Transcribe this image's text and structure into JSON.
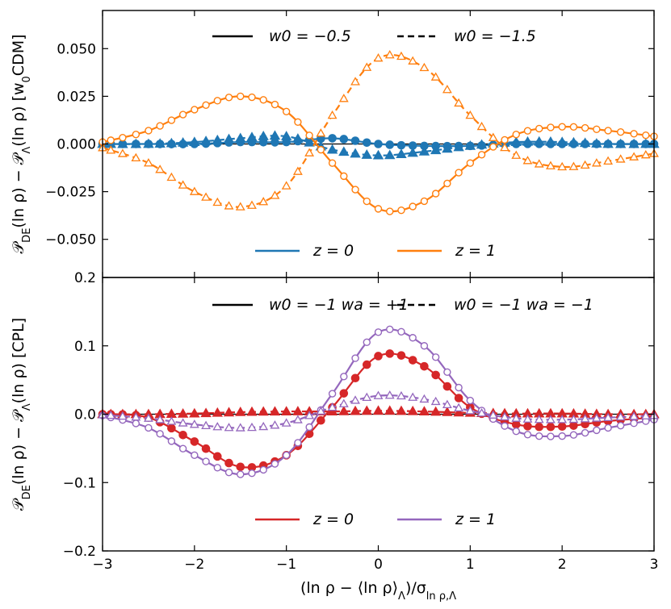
{
  "chart_data": [
    {
      "type": "line",
      "panel": "top",
      "ylabel": "P_DE(ln ρ) − P_Λ(ln ρ) [w0CDM]",
      "ylabel_parts": {
        "main": "𝒫",
        "sub1": "DE",
        "mid": "(ln ρ) − 𝒫",
        "sub2": "Λ",
        "tail": "(ln ρ) [w",
        "sub3": "0",
        "end": "CDM]"
      },
      "xlim": [
        -3,
        3
      ],
      "ylim": [
        -0.07,
        0.07
      ],
      "xticks": [
        -3,
        -2,
        -1,
        0,
        1,
        2,
        3
      ],
      "yticks": [
        -0.05,
        -0.025,
        0.0,
        0.025,
        0.05
      ],
      "ytick_labels": [
        "−0.050",
        "−0.025",
        "0.000",
        "0.025",
        "0.050"
      ],
      "show_xtick_labels": false,
      "zero_line": true,
      "series": [
        {
          "name": "w0 = -0.5, z = 0",
          "color": "#1f77b4",
          "linestyle": "solid",
          "marker": "filled-circle",
          "x": [
            -3.0,
            -2.5,
            -2.0,
            -1.5,
            -1.0,
            -0.5,
            0.0,
            0.5,
            1.0,
            1.5,
            2.0,
            2.5,
            3.0
          ],
          "y": [
            0.0,
            0.0,
            0.0,
            0.001,
            0.001,
            0.003,
            0.0,
            -0.001,
            -0.001,
            0.0,
            0.0,
            0.0,
            0.0
          ]
        },
        {
          "name": "w0 = -1.5, z = 0",
          "color": "#1f77b4",
          "linestyle": "dashed",
          "marker": "filled-triangle",
          "x": [
            -3.0,
            -2.5,
            -2.0,
            -1.5,
            -1.0,
            -0.5,
            0.0,
            0.5,
            1.0,
            1.5,
            2.0,
            2.5,
            3.0
          ],
          "y": [
            0.0,
            0.0,
            0.001,
            0.003,
            0.004,
            -0.003,
            -0.006,
            -0.004,
            -0.001,
            0.001,
            0.001,
            0.0,
            0.0
          ]
        },
        {
          "name": "w0 = -0.5, z = 1",
          "color": "#ff7f0e",
          "linestyle": "solid",
          "marker": "open-circle",
          "x": [
            -3.0,
            -2.5,
            -2.0,
            -1.5,
            -1.0,
            -0.5,
            0.0,
            0.5,
            1.0,
            1.5,
            2.0,
            2.5,
            3.0
          ],
          "y": [
            0.001,
            0.007,
            0.018,
            0.025,
            0.017,
            -0.01,
            -0.034,
            -0.03,
            -0.01,
            0.005,
            0.009,
            0.007,
            0.004
          ]
        },
        {
          "name": "w0 = -1.5, z = 1",
          "color": "#ff7f0e",
          "linestyle": "dashed",
          "marker": "open-triangle",
          "x": [
            -3.0,
            -2.5,
            -2.0,
            -1.5,
            -1.0,
            -0.5,
            0.0,
            0.5,
            1.0,
            1.5,
            2.0,
            2.5,
            3.0
          ],
          "y": [
            -0.002,
            -0.01,
            -0.025,
            -0.033,
            -0.022,
            0.015,
            0.045,
            0.04,
            0.015,
            -0.006,
            -0.012,
            -0.009,
            -0.005
          ]
        }
      ],
      "legend_linestyle": [
        {
          "label": "w0 = −0.5",
          "linestyle": "solid"
        },
        {
          "label": "w0 = −1.5",
          "linestyle": "dashed"
        }
      ],
      "legend_color": [
        {
          "label": "z = 0",
          "color": "#1f77b4"
        },
        {
          "label": "z = 1",
          "color": "#ff7f0e"
        }
      ]
    },
    {
      "type": "line",
      "panel": "bottom",
      "ylabel": "P_DE(ln ρ) − P_Λ(ln ρ) [CPL]",
      "ylabel_parts": {
        "main": "𝒫",
        "sub1": "DE",
        "mid": "(ln ρ) − 𝒫",
        "sub2": "Λ",
        "tail": "(ln ρ) [CPL]"
      },
      "xlabel": "(ln ρ − ⟨ln ρ⟩_Λ)/σ_lnρ,Λ",
      "xlabel_parts": {
        "main": "(ln ρ − ⟨ln ρ⟩",
        "sub1": "Λ",
        "mid": ")/σ",
        "sub2": "ln ρ,Λ"
      },
      "xlim": [
        -3,
        3
      ],
      "ylim": [
        -0.2,
        0.2
      ],
      "xticks": [
        -3,
        -2,
        -1,
        0,
        1,
        2,
        3
      ],
      "xtick_labels": [
        "−3",
        "−2",
        "−1",
        "0",
        "1",
        "2",
        "3"
      ],
      "yticks": [
        -0.2,
        -0.1,
        0.0,
        0.1,
        0.2
      ],
      "ytick_labels": [
        "−0.2",
        "−0.1",
        "0.0",
        "0.1",
        "0.2"
      ],
      "zero_line": true,
      "series": [
        {
          "name": "w0 = -1 wa = +1, z = 0",
          "color": "#d62728",
          "linestyle": "solid",
          "marker": "filled-circle",
          "x": [
            -3.0,
            -2.5,
            -2.0,
            -1.5,
            -1.0,
            -0.5,
            0.0,
            0.5,
            1.0,
            1.5,
            2.0,
            2.5,
            3.0
          ],
          "y": [
            0.0,
            -0.005,
            -0.04,
            -0.077,
            -0.06,
            0.01,
            0.085,
            0.07,
            0.01,
            -0.015,
            -0.018,
            -0.01,
            -0.005
          ]
        },
        {
          "name": "w0 = -1 wa = -1, z = 0",
          "color": "#d62728",
          "linestyle": "dashed",
          "marker": "filled-triangle",
          "x": [
            -3.0,
            -2.5,
            -2.0,
            -1.5,
            -1.0,
            -0.5,
            0.0,
            0.5,
            1.0,
            1.5,
            2.0,
            2.5,
            3.0
          ],
          "y": [
            0.0,
            0.0,
            0.001,
            0.003,
            0.004,
            0.004,
            0.005,
            0.004,
            0.002,
            0.001,
            0.001,
            0.0,
            0.0
          ]
        },
        {
          "name": "w0 = -1 wa = +1, z = 1",
          "color": "#9467bd",
          "linestyle": "solid",
          "marker": "open-circle",
          "x": [
            -3.0,
            -2.5,
            -2.0,
            -1.5,
            -1.0,
            -0.5,
            0.0,
            0.5,
            1.0,
            1.5,
            2.0,
            2.5,
            3.0
          ],
          "y": [
            -0.002,
            -0.02,
            -0.06,
            -0.088,
            -0.06,
            0.03,
            0.12,
            0.1,
            0.02,
            -0.025,
            -0.032,
            -0.02,
            -0.008
          ]
        },
        {
          "name": "w0 = -1 wa = -1, z = 1",
          "color": "#9467bd",
          "linestyle": "dashed",
          "marker": "open-triangle",
          "x": [
            -3.0,
            -2.5,
            -2.0,
            -1.5,
            -1.0,
            -0.5,
            0.0,
            0.5,
            1.0,
            1.5,
            2.0,
            2.5,
            3.0
          ],
          "y": [
            -0.001,
            -0.006,
            -0.015,
            -0.02,
            -0.013,
            0.01,
            0.027,
            0.022,
            0.005,
            -0.006,
            -0.008,
            -0.005,
            -0.002
          ]
        }
      ],
      "legend_linestyle": [
        {
          "label": "w0 = −1 wa = +1",
          "linestyle": "solid"
        },
        {
          "label": "w0 = −1 wa = −1",
          "linestyle": "dashed"
        }
      ],
      "legend_color": [
        {
          "label": "z = 0",
          "color": "#d62728"
        },
        {
          "label": "z = 1",
          "color": "#9467bd"
        }
      ]
    }
  ]
}
